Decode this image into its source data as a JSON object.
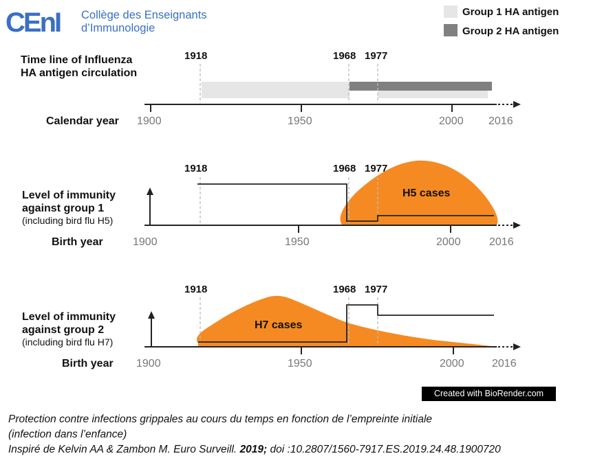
{
  "logo": {
    "mark": "CEnI",
    "line1": "Collège des Enseignants",
    "line2": "d’Immunologie",
    "color": "#3A6FC4"
  },
  "legend": [
    {
      "label": "Group 1 HA antigen",
      "color": "#E6E6E6"
    },
    {
      "label": "Group 2 HA antigen",
      "color": "#808080"
    }
  ],
  "colors": {
    "orange": "#F58A22",
    "axis": "#222222",
    "dash": "#BBBBBB",
    "tick_text": "#777777"
  },
  "axis_ticks": [
    "1900",
    "1950",
    "2000",
    "2016"
  ],
  "marker_years": {
    "a": "1918",
    "b": "1968",
    "c": "1977"
  },
  "panel1": {
    "title_line1": "Time line of Influenza",
    "title_line2": "HA antigen circulation",
    "axis_label": "Calendar year",
    "group1_span": [
      1918,
      1966
    ],
    "group1_late_span": [
      1977,
      2012
    ],
    "group2_span": [
      1966,
      2013
    ]
  },
  "panel2": {
    "label_line1": "Level of immunity",
    "label_line2": "against group 1",
    "label_line3": "(including bird flu H5)",
    "axis_label": "Birth year",
    "cases_label": "H5 cases"
  },
  "panel3": {
    "label_line1": "Level of immunity",
    "label_line2": "against group 2",
    "label_line3": "(including bird flu H7)",
    "axis_label": "Birth year",
    "cases_label": "H7 cases"
  },
  "credit": "Created with BioRender.com",
  "caption": {
    "line1": "Protection contre infections grippales au cours du temps en fonction de l’empreinte initiale",
    "line2": "(infection dans l’enfance)",
    "line3_a": "Inspiré de Kelvin AA &  Zambon M.  Euro Surveill. ",
    "line3_year": "2019;",
    "line3_b": " doi :10.2807/1560-7917.ES.2019.24.48.1900720"
  }
}
